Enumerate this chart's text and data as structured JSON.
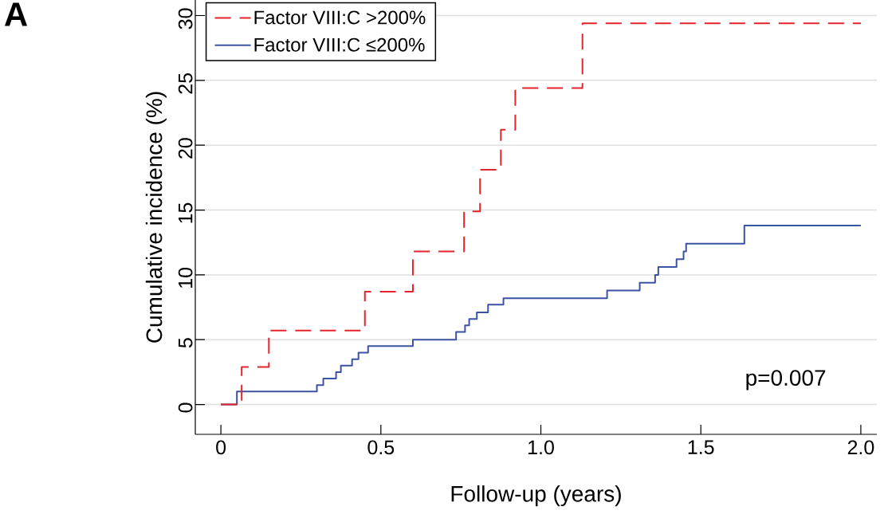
{
  "chart_data": {
    "type": "step",
    "xlabel": "Follow-up (years)",
    "ylabel": "Cumulative incidence (%)",
    "annotations": [
      "A",
      "p=0.007"
    ],
    "xlim": [
      -0.08,
      2.05
    ],
    "ylim": [
      -2.3,
      31.2
    ],
    "xticks": [
      0,
      0.5,
      {
        "value": 1,
        "label": "1.0"
      },
      1.5,
      {
        "value": 2,
        "label": "2.0"
      }
    ],
    "yticks": [
      0,
      5,
      10,
      15,
      20,
      25,
      30
    ],
    "grid": "y",
    "legend": "top left",
    "marker": "none",
    "series": [
      {
        "name": "Factor VIII:C >200%",
        "color": "#e3242b",
        "line_style": "dashed",
        "x": [
          0,
          0.065,
          0.15,
          0.45,
          0.6,
          0.76,
          0.81,
          0.875,
          0.92,
          1.13,
          2.0
        ],
        "values": [
          0,
          2.9,
          5.7,
          8.7,
          11.8,
          14.9,
          18.1,
          21.2,
          24.4,
          29.4,
          29.4
        ]
      },
      {
        "name": "Factor VIII:C ≤200%",
        "color": "#3c53a4",
        "line_style": "solid",
        "x": [
          0,
          0.05,
          0.3,
          0.32,
          0.36,
          0.375,
          0.41,
          0.43,
          0.46,
          0.6,
          0.735,
          0.763,
          0.776,
          0.8,
          0.835,
          0.883,
          1.207,
          1.309,
          1.357,
          1.367,
          1.424,
          1.446,
          1.454,
          1.636,
          2.0
        ],
        "values": [
          0,
          1.0,
          1.5,
          2.0,
          2.5,
          3.0,
          3.5,
          4.0,
          4.5,
          5.0,
          5.6,
          6.1,
          6.6,
          7.1,
          7.7,
          8.2,
          8.8,
          9.4,
          10.0,
          10.6,
          11.2,
          11.8,
          12.4,
          13.8,
          13.8
        ]
      }
    ]
  }
}
